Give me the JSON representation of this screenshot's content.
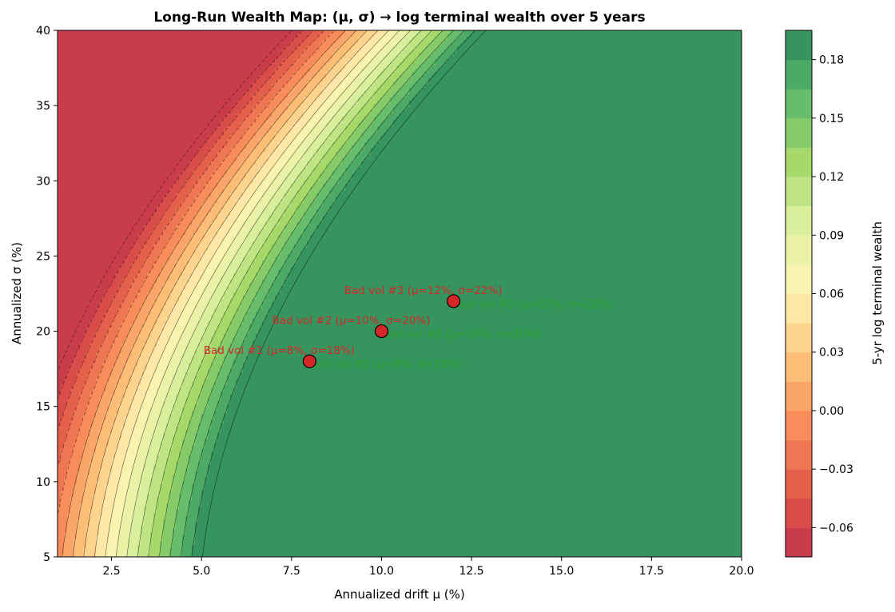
{
  "chart_data": {
    "type": "heatmap",
    "title": "Long-Run Wealth Map: (μ, σ) → log terminal wealth over 5 years",
    "xlabel": "Annualized drift μ (%)",
    "ylabel": "Annualized σ (%)",
    "colorbar_label": "5-yr log terminal wealth",
    "xlim": [
      1,
      20
    ],
    "ylim": [
      5,
      40
    ],
    "x_ticks": [
      "2.5",
      "5.0",
      "7.5",
      "10.0",
      "12.5",
      "15.0",
      "17.5",
      "20.0"
    ],
    "y_ticks": [
      "5",
      "10",
      "15",
      "20",
      "25",
      "30",
      "35",
      "40"
    ],
    "colorbar_range": [
      -0.075,
      0.195
    ],
    "colorbar_ticks": [
      "−0.06",
      "−0.03",
      "0.00",
      "0.03",
      "0.06",
      "0.09",
      "0.12",
      "0.15",
      "0.18"
    ],
    "level_step": 0.015,
    "model": "z = 5·(μ − σ²/2)/100 − 0.05",
    "colormap": [
      "#c1334a",
      "#e35a48",
      "#f88d5b",
      "#fdc37b",
      "#fff3b3",
      "#dff2a2",
      "#a6d96a",
      "#5fb96b",
      "#2a8a5c"
    ],
    "points": [
      {
        "mu": 8,
        "sigma": 18,
        "bad_label": "Bad vol #1 (μ=8%, σ=18%)",
        "good_label": "Good vol #1 (μ=8%, σ=18%)"
      },
      {
        "mu": 10,
        "sigma": 20,
        "bad_label": "Bad vol #2 (μ=10%, σ=20%)",
        "good_label": "Good vol #2 (μ=10%, σ=20%)"
      },
      {
        "mu": 12,
        "sigma": 22,
        "bad_label": "Bad vol #3 (μ=12%, σ=22%)",
        "good_label": "Good vol #3 (μ=12%, σ=22%)"
      }
    ],
    "point_color": "#d62728",
    "bad_label_color": "#d62728",
    "good_label_color": "#2ca02c"
  }
}
